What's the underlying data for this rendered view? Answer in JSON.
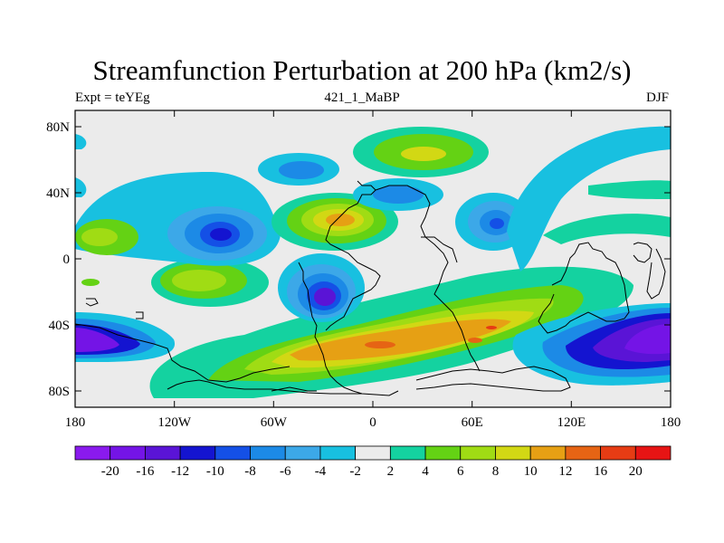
{
  "title": "Streamfunction Perturbation at 200 hPa (km2/s)",
  "left_string": "Expt = teYEg",
  "center_string": "421_1_MaBP",
  "right_string": "DJF",
  "x_ticks": [
    "180",
    "120W",
    "60W",
    "0",
    "60E",
    "120E",
    "180"
  ],
  "y_ticks": [
    "80N",
    "40N",
    "0",
    "40S",
    "80S"
  ],
  "colorbar": {
    "labels": [
      "-20",
      "-16",
      "-12",
      "-10",
      "-8",
      "-6",
      "-4",
      "-2",
      "2",
      "4",
      "6",
      "8",
      "10",
      "12",
      "16",
      "20"
    ],
    "colors": [
      "#8a1aee",
      "#7414e6",
      "#5a14d6",
      "#1414d0",
      "#1450e6",
      "#1c8ae6",
      "#3ca8e8",
      "#18c0e0",
      "#ebebeb",
      "#14d2a0",
      "#64d214",
      "#a0dc14",
      "#d2d814",
      "#e6a014",
      "#e66414",
      "#e63c14",
      "#e61414"
    ]
  }
}
